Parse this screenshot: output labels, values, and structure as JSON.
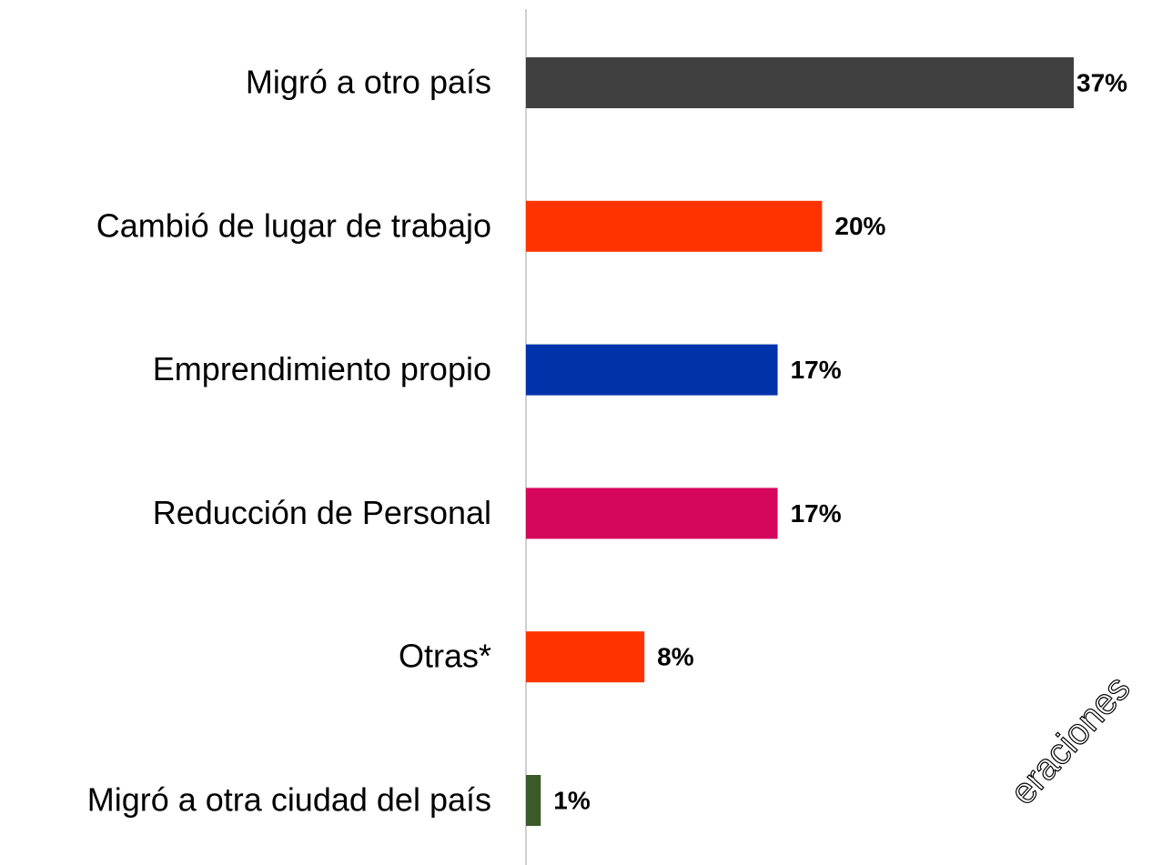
{
  "chart_data": {
    "type": "hbar",
    "categories": [
      "Migró a otro país",
      "Cambió de lugar de trabajo",
      "Emprendimiento propio",
      "Reducción de Personal",
      "Otras*",
      "Migró a otra ciudad del país"
    ],
    "values": [
      37,
      20,
      17,
      17,
      8,
      1
    ],
    "value_labels": [
      "37%",
      "20%",
      "17%",
      "17%",
      "8%",
      "1%"
    ],
    "colors": [
      "#404040",
      "#ff3300",
      "#0033aa",
      "#d6065d",
      "#ff3300",
      "#3b5a2a"
    ],
    "xlim": [
      0,
      37
    ],
    "watermark": "eraciones"
  }
}
